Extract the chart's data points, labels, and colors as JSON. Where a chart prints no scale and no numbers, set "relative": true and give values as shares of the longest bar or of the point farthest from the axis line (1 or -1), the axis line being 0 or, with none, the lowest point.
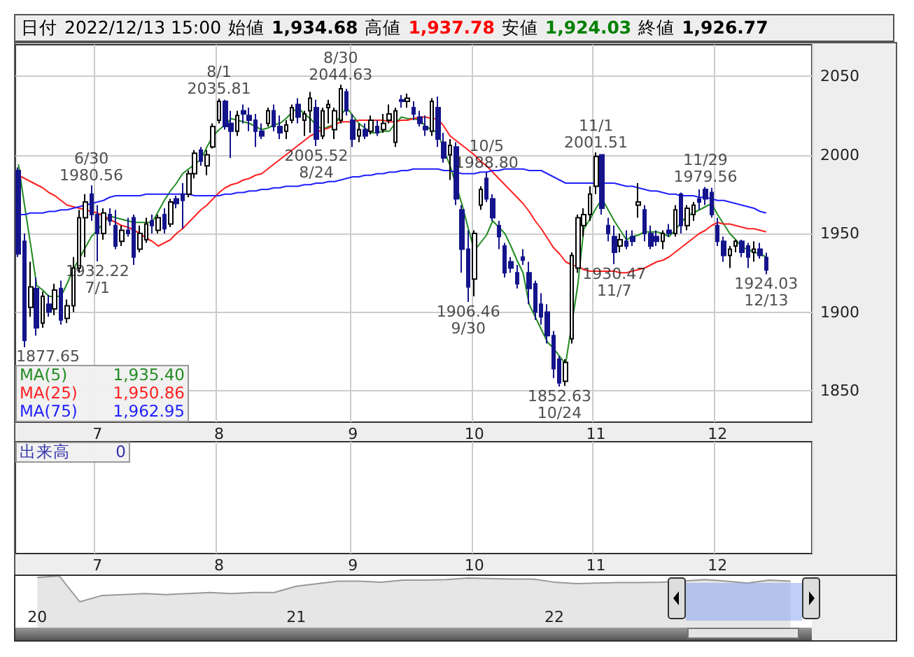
{
  "chart_data": [
    {
      "type": "candlestick",
      "colors": [
        "#14148c",
        "#14148c",
        "#ffffff",
        "#14148c",
        "#ffffff",
        "#14148c",
        "#ffffff",
        "#14148c",
        "#ffffff",
        "#ffffff",
        "#ffffff",
        "#ffffff",
        "#14148c",
        "#14148c",
        "#ffffff",
        "#14148c",
        "#14148c",
        "#ffffff",
        "#14148c",
        "#14148c",
        "#ffffff",
        "#ffffff",
        "#14148c",
        "#ffffff",
        "#14148c",
        "#ffffff",
        "#14148c",
        "#14148c",
        "#ffffff",
        "#ffffff",
        "#14148c",
        "#ffffff",
        "#ffffff",
        "#ffffff",
        "#14148c",
        "#14148c",
        "#ffffff",
        "#14148c",
        "#14148c",
        "#14148c",
        "#14148c",
        "#ffffff",
        "#14148c",
        "#14148c",
        "#ffffff",
        "#ffffff",
        "#14148c",
        "#ffffff",
        "#ffffff",
        "#14148c",
        "#ffffff",
        "#ffffff",
        "#ffffff",
        "#ffffff",
        "#14148c",
        "#14148c",
        "#ffffff",
        "#14148c",
        "#ffffff",
        "#14148c",
        "#ffffff",
        "#ffffff",
        "#ffffff",
        "#14148c",
        "#ffffff",
        "#14148c",
        "#14148c",
        "#14148c",
        "#ffffff",
        "#14148c",
        "#14148c",
        "#ffffff",
        "#14148c",
        "#14148c",
        "#14148c",
        "#ffffff",
        "#ffffff",
        "#14148c",
        "#14148c",
        "#14148c",
        "#14148c",
        "#14148c",
        "#14148c",
        "#14148c",
        "#14148c",
        "#14148c",
        "#14148c",
        "#14148c",
        "#14148c",
        "#14148c",
        "#ffffff",
        "#ffffff",
        "#ffffff",
        "#ffffff",
        "#ffffff",
        "#ffffff",
        "#14148c",
        "#14148c",
        "#14148c",
        "#ffffff",
        "#14148c",
        "#14148c",
        "#ffffff",
        "#14148c",
        "#14148c",
        "#14148c",
        "#ffffff",
        "#14148c",
        "#ffffff",
        "#14148c",
        "#ffffff",
        "#ffffff",
        "#14148c",
        "#14148c",
        "#14148c",
        "#14148c",
        "#14148c",
        "#ffffff",
        "#ffffff",
        "#14148c",
        "#14148c",
        "#ffffff",
        "#14148c",
        "#14148c"
      ],
      "categories": [
        null,
        null,
        null,
        null,
        null,
        null,
        null,
        null,
        null,
        null,
        null,
        null,
        null,
        "7",
        null,
        null,
        null,
        null,
        null,
        null,
        null,
        null,
        null,
        null,
        null,
        null,
        null,
        null,
        null,
        null,
        null,
        null,
        null,
        "8",
        null,
        null,
        null,
        null,
        null,
        null,
        null,
        null,
        null,
        null,
        null,
        null,
        null,
        null,
        null,
        null,
        null,
        null,
        null,
        null,
        null,
        "9",
        null,
        null,
        null,
        null,
        null,
        null,
        null,
        null,
        null,
        null,
        null,
        null,
        null,
        null,
        null,
        null,
        null,
        null,
        null,
        "10",
        null,
        null,
        null,
        null,
        null,
        null,
        null,
        null,
        null,
        null,
        null,
        null,
        null,
        null,
        null,
        null,
        null,
        null,
        null,
        "11",
        null,
        null,
        null,
        null,
        null,
        null,
        null,
        null,
        null,
        null,
        null,
        null,
        null,
        null,
        null,
        null,
        null,
        null,
        null,
        "12",
        null,
        null,
        null,
        null,
        null,
        null,
        null,
        null
      ],
      "ohlc": [
        [
          1990,
          1992,
          1935,
          1937
        ],
        [
          1945,
          1950,
          1877.65,
          1882
        ],
        [
          1903,
          1932,
          1897,
          1916
        ],
        [
          1915,
          1922,
          1885,
          1890
        ],
        [
          1893,
          1913,
          1890,
          1910
        ],
        [
          1905,
          1911,
          1897,
          1900
        ],
        [
          1902,
          1918,
          1898,
          1914
        ],
        [
          1915,
          1920,
          1892,
          1895
        ],
        [
          1896,
          1908,
          1893,
          1904
        ],
        [
          1904,
          1935,
          1900,
          1928
        ],
        [
          1928,
          1965,
          1925,
          1960
        ],
        [
          1960,
          1975,
          1935,
          1970
        ],
        [
          1975,
          1980.56,
          1958,
          1962
        ],
        [
          1962,
          1968,
          1932.22,
          1950
        ],
        [
          1950,
          1966,
          1946,
          1963
        ],
        [
          1962,
          1966,
          1955,
          1958
        ],
        [
          1955,
          1965,
          1940,
          1942
        ],
        [
          1945,
          1955,
          1942,
          1952
        ],
        [
          1952,
          1960,
          1948,
          1950
        ],
        [
          1960,
          1962,
          1930,
          1935
        ],
        [
          1940,
          1955,
          1938,
          1950
        ],
        [
          1946,
          1960,
          1944,
          1956
        ],
        [
          1958,
          1962,
          1950,
          1955
        ],
        [
          1952,
          1962,
          1950,
          1960
        ],
        [
          1962,
          1966,
          1950,
          1953
        ],
        [
          1956,
          1972,
          1954,
          1970
        ],
        [
          1972,
          1974,
          1966,
          1969
        ],
        [
          1975,
          1982,
          1953,
          1971
        ],
        [
          1975,
          1990,
          1973,
          1988
        ],
        [
          1988,
          2003,
          1985,
          2001
        ],
        [
          2003,
          2005,
          1993,
          1996
        ],
        [
          1993,
          2003,
          1987,
          2000
        ],
        [
          2005,
          2020,
          2004,
          2018
        ],
        [
          2022,
          2035.81,
          2020,
          2034
        ],
        [
          2034,
          2035,
          2016,
          2018
        ],
        [
          2020,
          2028,
          1998,
          2015
        ],
        [
          2015,
          2028,
          2012,
          2025
        ],
        [
          2028,
          2032,
          2020,
          2026
        ],
        [
          2025,
          2030,
          2015,
          2022
        ],
        [
          2022,
          2026,
          2005,
          2015
        ],
        [
          2015,
          2020,
          2010,
          2012
        ],
        [
          2020,
          2030,
          2018,
          2028
        ],
        [
          2028,
          2032,
          2015,
          2018
        ],
        [
          2018,
          2025,
          2010,
          2014
        ],
        [
          2015,
          2022,
          2010,
          2019
        ],
        [
          2022,
          2032,
          2020,
          2030
        ],
        [
          2032,
          2036,
          2020,
          2024
        ],
        [
          2022,
          2028,
          2012,
          2026
        ],
        [
          2028,
          2040,
          2014,
          2036
        ],
        [
          2030,
          2035,
          2005.52,
          2010
        ],
        [
          2012,
          2030,
          2010,
          2028
        ],
        [
          2030,
          2035,
          2020,
          2032
        ],
        [
          2016,
          2030,
          2010,
          2028
        ],
        [
          2022,
          2044.63,
          2020,
          2042
        ],
        [
          2040,
          2042,
          2025,
          2028
        ],
        [
          2022,
          2026,
          2005,
          2010
        ],
        [
          2012,
          2020,
          2008,
          2016
        ],
        [
          2016,
          2020,
          2010,
          2012
        ],
        [
          2015,
          2025,
          2013,
          2022
        ],
        [
          2018,
          2022,
          2012,
          2014
        ],
        [
          2016,
          2026,
          2014,
          2020
        ],
        [
          2022,
          2032,
          2020,
          2026
        ],
        [
          2008,
          2030,
          2005,
          2028
        ],
        [
          2035,
          2038,
          2030,
          2034
        ],
        [
          2034,
          2039,
          2030,
          2036
        ],
        [
          2030,
          2034,
          2022,
          2026
        ],
        [
          2024,
          2028,
          2018,
          2020
        ],
        [
          2018,
          2025,
          2012,
          2016
        ],
        [
          2015,
          2036,
          2012,
          2034
        ],
        [
          2030,
          2037,
          2005,
          2010
        ],
        [
          2008,
          2014,
          1995,
          1998
        ],
        [
          2000,
          2010,
          1984,
          2006
        ],
        [
          2005,
          2008,
          1968,
          1972
        ],
        [
          1965,
          1968,
          1925,
          1940
        ],
        [
          1940,
          1952,
          1906.46,
          1916
        ],
        [
          1921,
          1952,
          1910,
          1950
        ],
        [
          1968,
          1980,
          1965,
          1978
        ],
        [
          1985,
          1988.8,
          1970,
          1972
        ],
        [
          1972,
          1975,
          1958,
          1960
        ],
        [
          1955,
          1958,
          1940,
          1948
        ],
        [
          1942,
          1944,
          1922,
          1925
        ],
        [
          1932,
          1935,
          1925,
          1928
        ],
        [
          1925,
          1930,
          1915,
          1918
        ],
        [
          1935,
          1940,
          1930,
          1933
        ],
        [
          1925,
          1932,
          1905,
          1915
        ],
        [
          1918,
          1920,
          1895,
          1900
        ],
        [
          1905,
          1912,
          1892,
          1897
        ],
        [
          1900,
          1905,
          1880,
          1885
        ],
        [
          1885,
          1888,
          1858,
          1864
        ],
        [
          1870,
          1872,
          1852.63,
          1855
        ],
        [
          1856,
          1870,
          1853,
          1868
        ],
        [
          1883,
          1938,
          1880,
          1936
        ],
        [
          1928,
          1962,
          1925,
          1960
        ],
        [
          1955,
          1966,
          1948,
          1962
        ],
        [
          1962,
          1980,
          1958,
          1975
        ],
        [
          1980,
          2001.51,
          1975,
          1999
        ],
        [
          2000,
          2000,
          1962,
          1966
        ],
        [
          1955,
          1960,
          1945,
          1950
        ],
        [
          1948,
          1955,
          1930.47,
          1938
        ],
        [
          1942,
          1950,
          1938,
          1946
        ],
        [
          1945,
          1952,
          1940,
          1942
        ],
        [
          1948,
          1952,
          1942,
          1945
        ],
        [
          1968,
          1982,
          1960,
          1970
        ],
        [
          1965,
          1968,
          1945,
          1950
        ],
        [
          1950,
          1955,
          1940,
          1942
        ],
        [
          1948,
          1952,
          1942,
          1945
        ],
        [
          1945,
          1952,
          1940,
          1950
        ],
        [
          1952,
          1956,
          1948,
          1950
        ],
        [
          1950,
          1968,
          1948,
          1965
        ],
        [
          1975,
          1976,
          1950,
          1955
        ],
        [
          1955,
          1968,
          1952,
          1966
        ],
        [
          1962,
          1970,
          1958,
          1968
        ],
        [
          1972,
          1978,
          1965,
          1970
        ],
        [
          1978,
          1979.56,
          1968,
          1972
        ],
        [
          1976,
          1979,
          1960,
          1962
        ],
        [
          1955,
          1960,
          1942,
          1945
        ],
        [
          1945,
          1948,
          1932,
          1936
        ],
        [
          1936,
          1942,
          1928,
          1940
        ],
        [
          1942,
          1946,
          1938,
          1945
        ],
        [
          1945,
          1946,
          1935,
          1938
        ],
        [
          1942,
          1944,
          1928,
          1935
        ],
        [
          1938,
          1945,
          1932,
          1940
        ],
        [
          1940,
          1944,
          1934,
          1936
        ],
        [
          1934.68,
          1937.78,
          1924.03,
          1926.77
        ]
      ],
      "series": [
        {
          "name": "MA(5)",
          "type": "line",
          "color": "#228b22",
          "values": [
            1994,
            1968,
            1943,
            1917,
            1914,
            1910,
            1910,
            1910,
            1918,
            1927,
            1934,
            1941,
            1948,
            1952,
            1957,
            1961,
            1960,
            1959,
            1958,
            1957,
            1957,
            1957,
            1957,
            1964,
            1971,
            1977,
            1982,
            1988,
            1991,
            1994,
            1997,
            2005,
            2012,
            2016,
            2019,
            2023,
            2022,
            2021,
            2020,
            2018,
            2016,
            2017,
            2019,
            2020,
            2023,
            2027,
            2030,
            2026,
            2023,
            2019,
            2016,
            2018,
            2019,
            2025,
            2030,
            2025,
            2020,
            2017,
            2014,
            2014,
            2015,
            2015,
            2020,
            2024,
            2023,
            2023,
            2022,
            2018,
            2016,
            2014,
            2003,
            1993,
            null,
            1968,
            1953,
            1939,
            1944,
            1949,
            1958,
            1954,
            1950,
            1942,
            1933,
            1925,
            1905,
            1897,
            1889,
            1881,
            1877,
            1872,
            1867,
            null,
            1917,
            1953,
            1959,
            1966,
            1972,
            1965,
            1958,
            1952,
            1946,
            1948,
            1949,
            1951,
            1951,
            1951,
            1950,
            1948,
            1952,
            1957,
            1961,
            1963,
            1965,
            1967,
            1969,
            1962,
            1956,
            1950,
            1946,
            1941,
            1940,
            1938,
            1937,
            1935
          ]
        },
        {
          "name": "MA(25)",
          "type": "line",
          "color": "#ff2020",
          "values": [
            1987,
            1985,
            1983,
            1981,
            1979,
            1976,
            1974,
            1971,
            1968,
            1967,
            1966,
            1965,
            1964,
            1963,
            1961,
            1959,
            1957,
            1955,
            1954,
            1952,
            1950,
            1947,
            1945,
            1942,
            1944,
            1946,
            1950,
            1953,
            1957,
            1961,
            1965,
            1968,
            1972,
            1976,
            1979,
            1981,
            1982,
            1984,
            1985,
            1987,
            1988,
            1991,
            1994,
            1997,
            2000,
            2003,
            2006,
            2009,
            2012,
            2014,
            2016,
            2017,
            2019,
            2021,
            2021,
            2021,
            2022,
            2022,
            2022,
            2022,
            2022,
            2021,
            2021,
            2022,
            2022,
            2023,
            2024,
            2024,
            2023,
            2023,
            2018,
            2012,
            2009,
            2006,
            2003,
            2000,
            1996,
            1993,
            1989,
            1985,
            1981,
            1977,
            1973,
            1969,
            1964,
            1958,
            1953,
            1947,
            1941,
            1937,
            1932,
            1930,
            1929,
            1927,
            1926,
            1926,
            1926,
            1926,
            1926,
            1925,
            1925,
            1926,
            1927,
            1928,
            1930,
            1932,
            1933,
            1935,
            1938,
            1941,
            1944,
            1947,
            1950,
            1952,
            1955,
            1957,
            1956,
            1956,
            1955,
            1954,
            1953,
            1953,
            1952,
            1951
          ]
        },
        {
          "name": "MA(75)",
          "type": "line",
          "color": "#2020ff",
          "values": [
            1962,
            1962,
            1963,
            1963,
            1963,
            1964,
            1964,
            1965,
            1965,
            1966,
            1967,
            1968,
            1969,
            1970,
            1971,
            1973,
            1974,
            1974,
            1974,
            1974,
            1974,
            1975,
            1975,
            1975,
            1975,
            1975,
            1975,
            1975,
            1975,
            1974,
            1974,
            1974,
            1974,
            1974,
            1975,
            1975,
            1976,
            1976,
            1977,
            1977,
            1978,
            1978,
            1979,
            1979,
            1980,
            1980,
            1980,
            1981,
            1981,
            1982,
            1982,
            1983,
            1983,
            1984,
            1985,
            1986,
            1986,
            1987,
            1987,
            1988,
            1988,
            1989,
            1989,
            1990,
            1990,
            1991,
            1991,
            1991,
            1991,
            1991,
            1990,
            1990,
            1989,
            1988,
            1988,
            1988,
            1989,
            1989,
            1990,
            1990,
            1991,
            1991,
            1991,
            1991,
            1990,
            1990,
            1990,
            1988,
            1986,
            1984,
            1982,
            1982,
            1982,
            1982,
            1982,
            1982,
            1982,
            1982,
            1982,
            1981,
            1980,
            1980,
            1979,
            1978,
            1977,
            1977,
            1976,
            1975,
            1975,
            1974,
            1974,
            1974,
            1973,
            1973,
            1972,
            1971,
            1971,
            1970,
            1969,
            1968,
            1967,
            1966,
            1964,
            1963
          ]
        }
      ],
      "ylim": [
        1830,
        2070
      ],
      "yticks": [
        1850,
        1900,
        1950,
        2000,
        2050
      ],
      "grid": true,
      "legend": "bottom left",
      "annotations": [
        "日付",
        "2022/12/13 15:00",
        "始値",
        "1,934.68",
        "高値",
        "1,937.78",
        "安値",
        "1,924.03",
        "終値",
        "1,926.77",
        "1,935.40",
        "1,950.86",
        "1,962.95",
        "出来高",
        "0",
        "1877.65",
        {
          "text": "6/30\n1980.56",
          "y": 1980.56
        },
        {
          "text": "1932.22\n7/1",
          "y": 1932.22
        },
        {
          "text": "8/1\n2035.81",
          "y": 2035.81
        },
        {
          "text": "2005.52\n8/24",
          "y": 2005.52
        },
        {
          "text": "8/30\n2044.63",
          "y": 2044.63
        },
        {
          "text": "1906.46\n9/30",
          "y": 1906.46
        },
        {
          "text": "10/5\n1988.80",
          "y": 1988.8
        },
        {
          "text": "1852.63\n10/24",
          "y": 1852.63
        },
        {
          "text": "11/1\n2001.51",
          "y": 2001.51
        },
        {
          "text": "1930.47\n11/7",
          "y": 1930.47
        },
        {
          "text": "11/29\n1979.56",
          "y": 1979.56
        },
        {
          "text": "1924.03\n12/13",
          "y": 1924.03
        }
      ]
    },
    {
      "type": "area",
      "relative": true,
      "color": "#999999",
      "x": [
        "2020-01",
        "2020-02",
        "2020-03",
        "2020-04",
        "2020-05",
        "2020-06",
        "2020-07",
        "2020-08",
        "2020-09",
        "2020-10",
        "2020-11",
        "2020-12",
        "2021-01",
        "2021-02",
        "2021-03",
        "2021-04",
        "2021-05",
        "2021-06",
        "2021-07",
        "2021-08",
        "2021-09",
        "2021-10",
        "2021-11",
        "2021-12",
        "2022-01",
        "2022-02",
        "2022-03",
        "2022-04",
        "2022-05",
        "2022-06",
        "2022-07",
        "2022-08",
        "2022-09",
        "2022-10",
        "2022-11",
        "2022-12"
      ],
      "values": [
        0.97,
        1,
        0.5,
        0.62,
        0.64,
        0.66,
        0.64,
        0.66,
        0.68,
        0.66,
        0.68,
        0.68,
        0.8,
        0.85,
        0.9,
        0.9,
        0.88,
        0.92,
        0.92,
        0.93,
        0.96,
        0.95,
        0.94,
        0.94,
        0.88,
        0.85,
        0.86,
        0.87,
        0.87,
        0.88,
        0.9,
        0.93,
        0.9,
        0.86,
        0.92,
        0.9
      ],
      "xlim": [
        "2019-12-01",
        "2022-12-31"
      ],
      "xticks": [
        {
          "value": "2020-01-01",
          "label": "20"
        },
        {
          "value": "2021-01-01",
          "label": "21"
        },
        {
          "value": "2022-01-01",
          "label": "22"
        }
      ],
      "tick_labels": "x"
    }
  ]
}
